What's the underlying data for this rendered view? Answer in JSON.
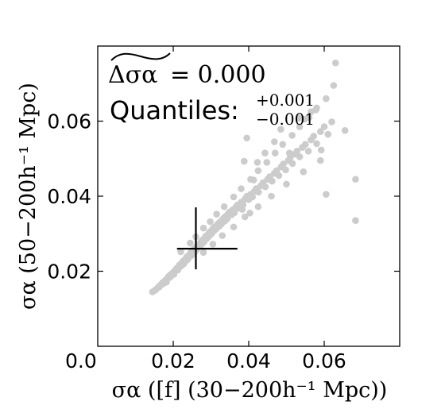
{
  "chart_data": {
    "type": "scatter",
    "title": "",
    "xlabel": "σα ([f]   (30−200h⁻¹ Mpc))",
    "ylabel": "σα (50−200h⁻¹ Mpc)",
    "xlim": [
      0.0,
      0.08
    ],
    "ylim": [
      0.0,
      0.08
    ],
    "xticks": [
      0.02,
      0.04,
      0.06
    ],
    "yticks": [
      0.02,
      0.04,
      0.06
    ],
    "origin_label": "0.0",
    "grid": false,
    "legend": "none",
    "point_color": "#cccccc",
    "annotation": {
      "stat_symbol": "Δσα",
      "stat_equals": "=",
      "stat_value": "0.000",
      "quantiles_label": "Quantiles:",
      "quantile_upper": "+0.001",
      "quantile_lower": "−0.001"
    },
    "marker_cross": {
      "x": 0.026,
      "y": 0.026,
      "x_range": [
        0.021,
        0.037
      ],
      "y_range": [
        0.0205,
        0.037
      ]
    },
    "points": [
      [
        0.0145,
        0.0145
      ],
      [
        0.015,
        0.0148
      ],
      [
        0.0155,
        0.0152
      ],
      [
        0.016,
        0.0157
      ],
      [
        0.0163,
        0.0158
      ],
      [
        0.0166,
        0.0163
      ],
      [
        0.017,
        0.0165
      ],
      [
        0.0172,
        0.017
      ],
      [
        0.0175,
        0.0168
      ],
      [
        0.0178,
        0.0174
      ],
      [
        0.018,
        0.0177
      ],
      [
        0.0182,
        0.0171
      ],
      [
        0.0185,
        0.018
      ],
      [
        0.0187,
        0.0185
      ],
      [
        0.019,
        0.0183
      ],
      [
        0.0192,
        0.019
      ],
      [
        0.0195,
        0.0188
      ],
      [
        0.0197,
        0.0194
      ],
      [
        0.02,
        0.0197
      ],
      [
        0.0202,
        0.0192
      ],
      [
        0.0205,
        0.0201
      ],
      [
        0.0207,
        0.0205
      ],
      [
        0.021,
        0.0208
      ],
      [
        0.0212,
        0.0203
      ],
      [
        0.0214,
        0.0211
      ],
      [
        0.0216,
        0.0216
      ],
      [
        0.0218,
        0.0212
      ],
      [
        0.022,
        0.0219
      ],
      [
        0.0222,
        0.0215
      ],
      [
        0.0224,
        0.0223
      ],
      [
        0.0226,
        0.0227
      ],
      [
        0.0228,
        0.022
      ],
      [
        0.023,
        0.023
      ],
      [
        0.0232,
        0.0226
      ],
      [
        0.0234,
        0.0234
      ],
      [
        0.0236,
        0.0238
      ],
      [
        0.0238,
        0.0231
      ],
      [
        0.024,
        0.0241
      ],
      [
        0.0242,
        0.0237
      ],
      [
        0.0244,
        0.0245
      ],
      [
        0.0246,
        0.0249
      ],
      [
        0.0248,
        0.0242
      ],
      [
        0.025,
        0.0252
      ],
      [
        0.0252,
        0.0247
      ],
      [
        0.0254,
        0.0256
      ],
      [
        0.0256,
        0.026
      ],
      [
        0.0258,
        0.0253
      ],
      [
        0.026,
        0.0263
      ],
      [
        0.0262,
        0.0258
      ],
      [
        0.0264,
        0.0267
      ],
      [
        0.0266,
        0.0271
      ],
      [
        0.0268,
        0.0264
      ],
      [
        0.027,
        0.0274
      ],
      [
        0.0272,
        0.0268
      ],
      [
        0.0274,
        0.0278
      ],
      [
        0.0276,
        0.0282
      ],
      [
        0.0278,
        0.0275
      ],
      [
        0.028,
        0.0285
      ],
      [
        0.0282,
        0.0279
      ],
      [
        0.0284,
        0.0289
      ],
      [
        0.0286,
        0.0293
      ],
      [
        0.0288,
        0.0286
      ],
      [
        0.029,
        0.0296
      ],
      [
        0.0292,
        0.029
      ],
      [
        0.0294,
        0.03
      ],
      [
        0.0296,
        0.0304
      ],
      [
        0.0298,
        0.0297
      ],
      [
        0.03,
        0.0307
      ],
      [
        0.0302,
        0.0301
      ],
      [
        0.0304,
        0.0311
      ],
      [
        0.0306,
        0.0315
      ],
      [
        0.0308,
        0.0308
      ],
      [
        0.031,
        0.0318
      ],
      [
        0.0313,
        0.0312
      ],
      [
        0.0316,
        0.0323
      ],
      [
        0.0319,
        0.0327
      ],
      [
        0.0322,
        0.032
      ],
      [
        0.0325,
        0.0332
      ],
      [
        0.0328,
        0.0326
      ],
      [
        0.0331,
        0.0338
      ],
      [
        0.0334,
        0.0342
      ],
      [
        0.0337,
        0.0334
      ],
      [
        0.034,
        0.0347
      ],
      [
        0.0343,
        0.034
      ],
      [
        0.0346,
        0.0354
      ],
      [
        0.035,
        0.0358
      ],
      [
        0.0354,
        0.035
      ],
      [
        0.0358,
        0.0364
      ],
      [
        0.0362,
        0.0356
      ],
      [
        0.0366,
        0.0371
      ],
      [
        0.037,
        0.0376
      ],
      [
        0.0375,
        0.0368
      ],
      [
        0.038,
        0.0384
      ],
      [
        0.0385,
        0.0377
      ],
      [
        0.039,
        0.0392
      ],
      [
        0.0395,
        0.04
      ],
      [
        0.04,
        0.0391
      ],
      [
        0.0405,
        0.0405
      ],
      [
        0.041,
        0.0398
      ],
      [
        0.0415,
        0.0413
      ],
      [
        0.042,
        0.042
      ],
      [
        0.0426,
        0.0411
      ],
      [
        0.0432,
        0.0428
      ],
      [
        0.0438,
        0.0436
      ],
      [
        0.0444,
        0.0425
      ],
      [
        0.045,
        0.0445
      ],
      [
        0.0456,
        0.0452
      ],
      [
        0.0462,
        0.044
      ],
      [
        0.0468,
        0.0461
      ],
      [
        0.0474,
        0.0468
      ],
      [
        0.048,
        0.0455
      ],
      [
        0.0486,
        0.0478
      ],
      [
        0.0492,
        0.0486
      ],
      [
        0.0498,
        0.047
      ],
      [
        0.0505,
        0.0495
      ],
      [
        0.051,
        0.0503
      ],
      [
        0.0516,
        0.0487
      ],
      [
        0.0522,
        0.0512
      ],
      [
        0.0528,
        0.052
      ],
      [
        0.0535,
        0.0505
      ],
      [
        0.0542,
        0.053
      ],
      [
        0.055,
        0.0538
      ],
      [
        0.0558,
        0.052
      ],
      [
        0.0565,
        0.055
      ],
      [
        0.0572,
        0.056
      ],
      [
        0.058,
        0.054
      ],
      [
        0.059,
        0.0572
      ],
      [
        0.06,
        0.0585
      ],
      [
        0.061,
        0.0565
      ],
      [
        0.062,
        0.0598
      ],
      [
        0.022,
        0.0252
      ],
      [
        0.0245,
        0.0275
      ],
      [
        0.026,
        0.0292
      ],
      [
        0.028,
        0.0315
      ],
      [
        0.0298,
        0.0332
      ],
      [
        0.0315,
        0.0352
      ],
      [
        0.0335,
        0.0372
      ],
      [
        0.036,
        0.0398
      ],
      [
        0.038,
        0.042
      ],
      [
        0.0405,
        0.0445
      ],
      [
        0.0425,
        0.0468
      ],
      [
        0.0448,
        0.049
      ],
      [
        0.047,
        0.0515
      ],
      [
        0.049,
        0.0538
      ],
      [
        0.0515,
        0.0562
      ],
      [
        0.0535,
        0.0585
      ],
      [
        0.056,
        0.061
      ],
      [
        0.058,
        0.0635
      ],
      [
        0.0605,
        0.066
      ],
      [
        0.0625,
        0.0695
      ],
      [
        0.028,
        0.025
      ],
      [
        0.0305,
        0.0272
      ],
      [
        0.033,
        0.0295
      ],
      [
        0.036,
        0.0318
      ],
      [
        0.039,
        0.0345
      ],
      [
        0.0425,
        0.0372
      ],
      [
        0.046,
        0.04
      ],
      [
        0.05,
        0.0432
      ],
      [
        0.0545,
        0.0465
      ],
      [
        0.059,
        0.0495
      ],
      [
        0.0403,
        0.0355
      ],
      [
        0.0423,
        0.049
      ],
      [
        0.0383,
        0.0365
      ],
      [
        0.0443,
        0.0515
      ],
      [
        0.0413,
        0.0443
      ],
      [
        0.0468,
        0.0545
      ],
      [
        0.0388,
        0.0493
      ],
      [
        0.0508,
        0.0515
      ],
      [
        0.0548,
        0.0605
      ],
      [
        0.0485,
        0.0578
      ],
      [
        0.063,
        0.0755
      ],
      [
        0.0578,
        0.063
      ],
      [
        0.0655,
        0.0575
      ],
      [
        0.0683,
        0.0335
      ],
      [
        0.0683,
        0.0445
      ],
      [
        0.0605,
        0.0405
      ],
      [
        0.0395,
        0.0555
      ],
      [
        0.0565,
        0.0625
      ],
      [
        0.0592,
        0.0523
      ],
      [
        0.0533,
        0.0608
      ]
    ]
  }
}
